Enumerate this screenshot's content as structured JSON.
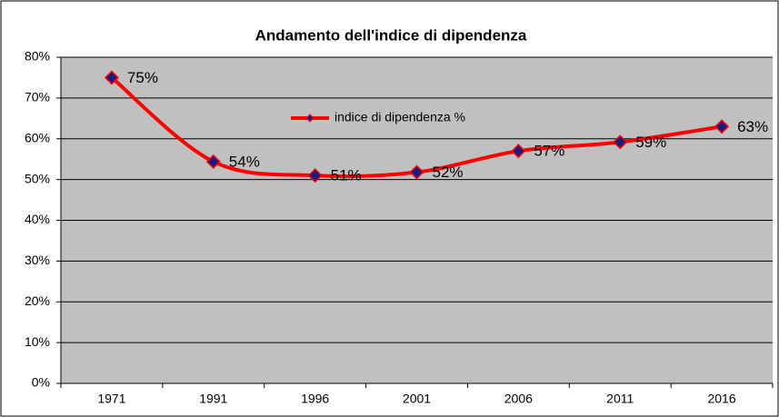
{
  "chart_data": {
    "type": "line",
    "title": "Andamento dell'indice di dipendenza",
    "categories": [
      "1971",
      "1991",
      "1996",
      "2001",
      "2006",
      "2011",
      "2016"
    ],
    "series": [
      {
        "name": "indice di dipendenza %",
        "color": "#ff0000",
        "marker_color": "#1a1a80",
        "values": [
          75,
          54.4,
          51,
          51.8,
          57,
          59.2,
          63
        ],
        "value_labels": [
          "75%",
          "54%",
          "51%",
          "52%",
          "57%",
          "59%",
          "63%"
        ]
      }
    ],
    "ylim": [
      0,
      80
    ],
    "yticks": [
      {
        "value": 0,
        "label": "0%"
      },
      {
        "value": 10,
        "label": "10%"
      },
      {
        "value": 20,
        "label": "20%"
      },
      {
        "value": 30,
        "label": "30%"
      },
      {
        "value": 40,
        "label": "40%"
      },
      {
        "value": 50,
        "label": "50%"
      },
      {
        "value": 60,
        "label": "60%"
      },
      {
        "value": 70,
        "label": "70%"
      },
      {
        "value": 80,
        "label": "80%"
      }
    ],
    "grid": true
  }
}
